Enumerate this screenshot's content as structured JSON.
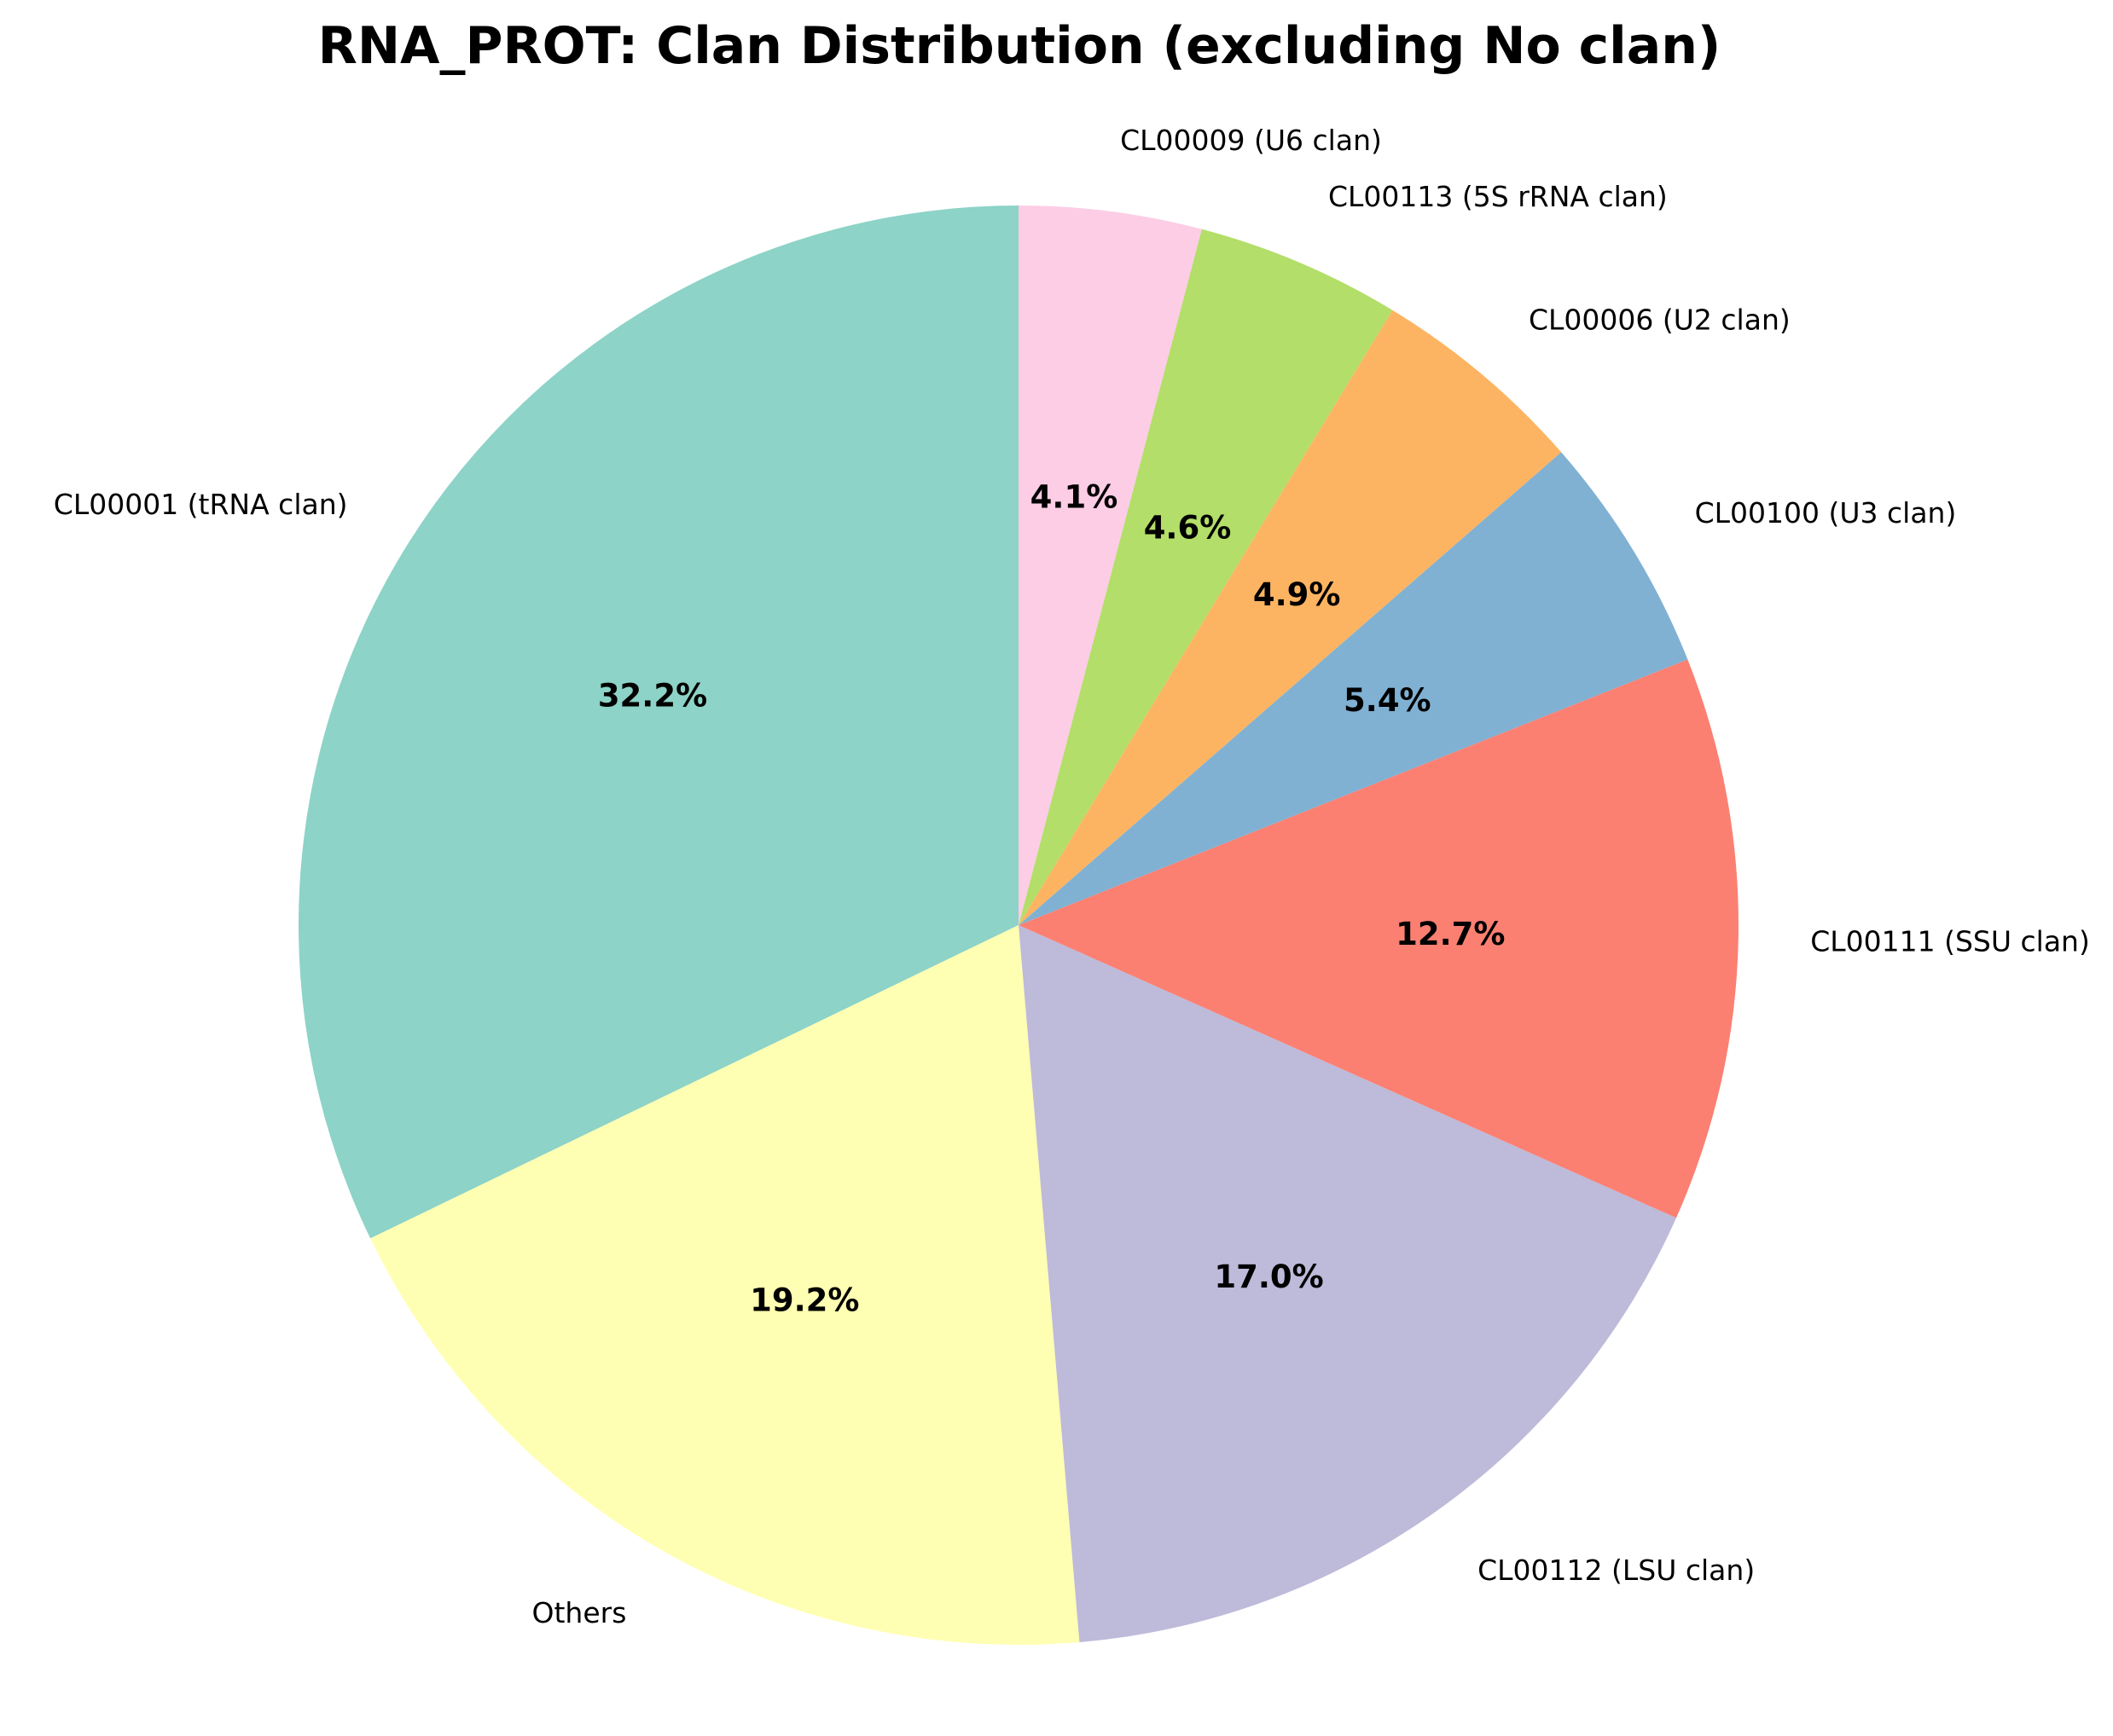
{
  "chart_data": {
    "type": "pie",
    "title": "RNA_PROT: Clan Distribution (excluding No clan)",
    "start_angle_deg": 90,
    "direction": "counterclockwise",
    "slices": [
      {
        "label": "CL00001 (tRNA clan)",
        "value": 32.2,
        "pct_text": "32.2%",
        "color": "#8dd3c7"
      },
      {
        "label": "Others",
        "value": 19.2,
        "pct_text": "19.2%",
        "color": "#ffffb3"
      },
      {
        "label": "CL00112 (LSU clan)",
        "value": 17.0,
        "pct_text": "17.0%",
        "color": "#bebada"
      },
      {
        "label": "CL00111 (SSU clan)",
        "value": 12.7,
        "pct_text": "12.7%",
        "color": "#fb8072"
      },
      {
        "label": "CL00100 (U3 clan)",
        "value": 5.4,
        "pct_text": "5.4%",
        "color": "#80b1d3"
      },
      {
        "label": "CL00006 (U2 clan)",
        "value": 4.9,
        "pct_text": "4.9%",
        "color": "#fdb462"
      },
      {
        "label": "CL00113 (5S rRNA clan)",
        "value": 4.6,
        "pct_text": "4.6%",
        "color": "#b3de69"
      },
      {
        "label": "CL00009 (U6 clan)",
        "value": 4.1,
        "pct_text": "4.1%",
        "color": "#fccde5"
      }
    ]
  }
}
